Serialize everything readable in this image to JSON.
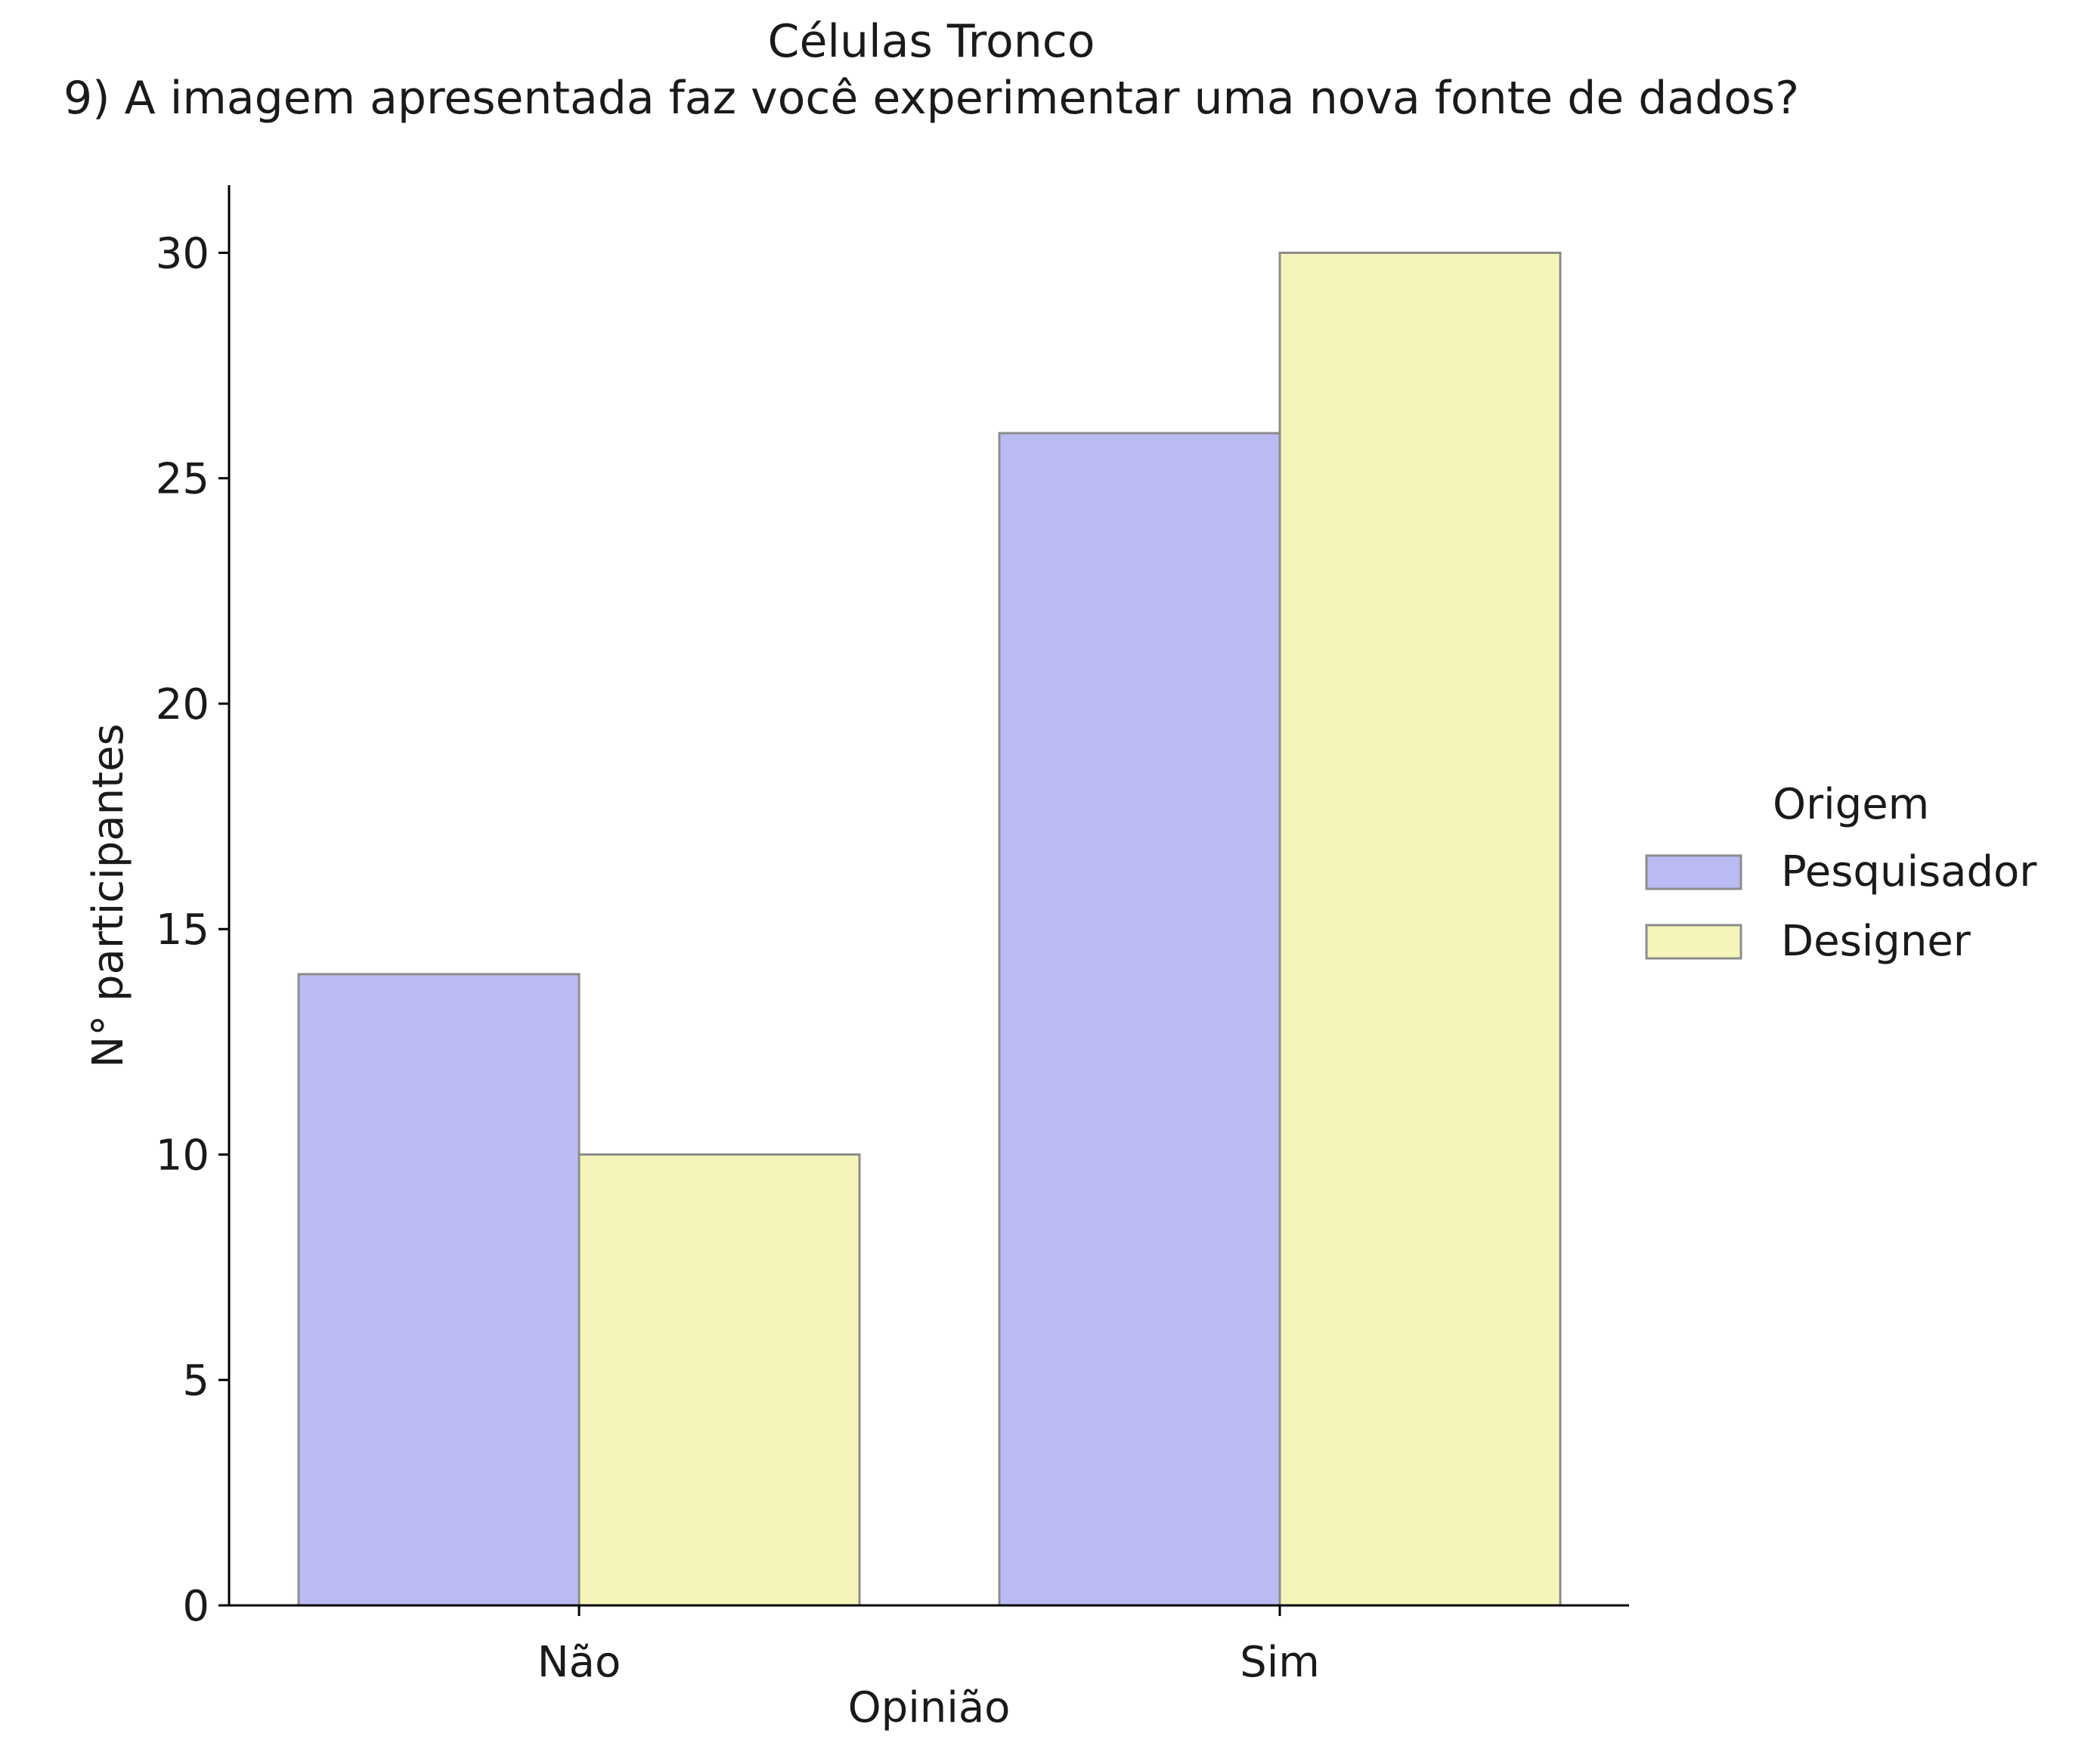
{
  "chart_data": {
    "type": "bar",
    "title": "Células Tronco",
    "subtitle": "9) A imagem apresentada faz você experimentar uma nova fonte de dados?",
    "xlabel": "Opinião",
    "ylabel": "N° participantes",
    "categories": [
      "Não",
      "Sim"
    ],
    "series": [
      {
        "name": "Pesquisador",
        "values": [
          14,
          26
        ],
        "color": "#bbbbf4"
      },
      {
        "name": "Designer",
        "values": [
          10,
          30
        ],
        "color": "#f5f5ba"
      }
    ],
    "ylim": [
      0,
      31.5
    ],
    "yticks": [
      0,
      5,
      10,
      15,
      20,
      25,
      30
    ],
    "grid": false,
    "legend": {
      "title": "Origem",
      "placement": "right"
    }
  }
}
